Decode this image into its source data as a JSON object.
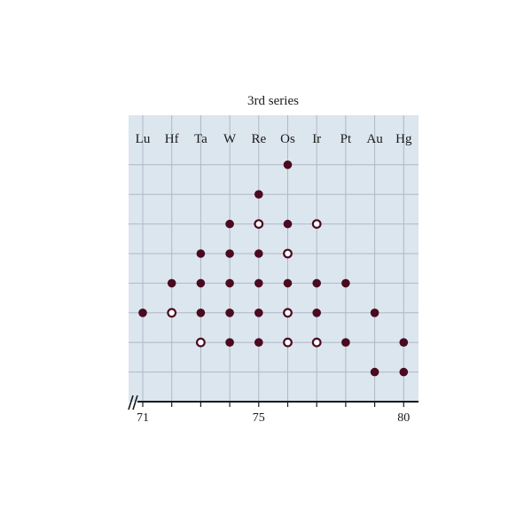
{
  "chart_data": {
    "type": "scatter",
    "title": "3rd series",
    "elements": [
      "Lu",
      "Hf",
      "Ta",
      "W",
      "Re",
      "Os",
      "Ir",
      "Pt",
      "Au",
      "Hg"
    ],
    "x_ticks": [
      71,
      75,
      80
    ],
    "xlim": [
      71,
      80
    ],
    "ylim": [
      0,
      8
    ],
    "axis_break_marker": true,
    "grid": true,
    "colors": {
      "plot_background": "#dce6ef",
      "grid": "#b0b8c4",
      "marker": "#4a0a1f",
      "open_marker_fill": "#ffffff",
      "axis": "#1a1a1a"
    },
    "series": [
      {
        "marker": "filled",
        "points": [
          {
            "x": 71,
            "y": 3
          },
          {
            "x": 72,
            "y": 4
          },
          {
            "x": 73,
            "y": 3
          },
          {
            "x": 73,
            "y": 4
          },
          {
            "x": 73,
            "y": 5
          },
          {
            "x": 74,
            "y": 2
          },
          {
            "x": 74,
            "y": 3
          },
          {
            "x": 74,
            "y": 4
          },
          {
            "x": 74,
            "y": 5
          },
          {
            "x": 74,
            "y": 6
          },
          {
            "x": 75,
            "y": 2
          },
          {
            "x": 75,
            "y": 3
          },
          {
            "x": 75,
            "y": 4
          },
          {
            "x": 75,
            "y": 5
          },
          {
            "x": 75,
            "y": 7
          },
          {
            "x": 76,
            "y": 4
          },
          {
            "x": 76,
            "y": 6
          },
          {
            "x": 76,
            "y": 8
          },
          {
            "x": 77,
            "y": 3
          },
          {
            "x": 77,
            "y": 4
          },
          {
            "x": 78,
            "y": 2
          },
          {
            "x": 78,
            "y": 4
          },
          {
            "x": 79,
            "y": 1
          },
          {
            "x": 79,
            "y": 3
          },
          {
            "x": 80,
            "y": 1
          },
          {
            "x": 80,
            "y": 2
          }
        ]
      },
      {
        "marker": "open",
        "points": [
          {
            "x": 72,
            "y": 3
          },
          {
            "x": 73,
            "y": 2
          },
          {
            "x": 75,
            "y": 6
          },
          {
            "x": 76,
            "y": 2
          },
          {
            "x": 76,
            "y": 3
          },
          {
            "x": 76,
            "y": 5
          },
          {
            "x": 77,
            "y": 2
          },
          {
            "x": 77,
            "y": 6
          }
        ]
      }
    ]
  }
}
